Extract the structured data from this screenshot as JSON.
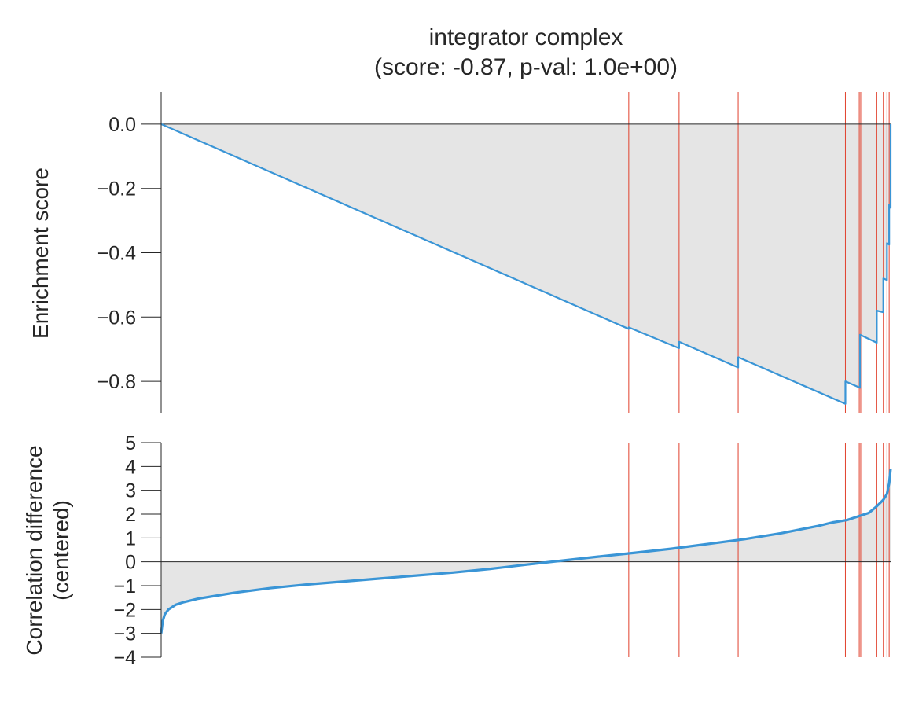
{
  "figure": {
    "title_line1": "integrator complex",
    "title_line2": "(score: -0.87, p-val: 1.0e+00)"
  },
  "colors": {
    "curve": "#3a95d6",
    "hit_line": "#e1412d",
    "fill": "#e5e5e5",
    "axis": "#262626"
  },
  "chart_data": [
    {
      "type": "line",
      "panel": "enrichment",
      "ylabel": "Enrichment score",
      "xlabel": "",
      "ylim": [
        -0.9,
        0.1
      ],
      "xlim": [
        0,
        1000
      ],
      "y_ticks": [
        {
          "value": 0.0,
          "label": "0.0"
        },
        {
          "value": -0.2,
          "label": "−0.2"
        },
        {
          "value": -0.4,
          "label": "−0.4"
        },
        {
          "value": -0.6,
          "label": "−0.6"
        },
        {
          "value": -0.8,
          "label": "−0.8"
        }
      ],
      "series": [
        {
          "x": [
            0,
            641,
            641,
            710,
            710,
            791,
            791,
            938,
            938,
            958,
            958,
            981,
            981,
            990,
            990,
            995,
            995,
            998,
            998,
            1000,
            1000
          ],
          "y": [
            0.0,
            -0.637,
            -0.632,
            -0.697,
            -0.677,
            -0.757,
            -0.725,
            -0.87,
            -0.8,
            -0.82,
            -0.655,
            -0.68,
            -0.58,
            -0.585,
            -0.48,
            -0.485,
            -0.37,
            -0.375,
            -0.25,
            -0.26,
            0.0
          ]
        }
      ],
      "hit_positions": [
        641,
        710,
        791,
        938,
        957,
        959,
        981,
        990,
        995,
        998
      ]
    },
    {
      "type": "area",
      "panel": "ranked-metric",
      "ylabel_line1": "Correlation difference",
      "ylabel_line2": "(centered)",
      "xlabel": "",
      "ylim": [
        -4,
        5
      ],
      "xlim": [
        0,
        1000
      ],
      "y_ticks": [
        {
          "value": 5,
          "label": "5"
        },
        {
          "value": 4,
          "label": "4"
        },
        {
          "value": 3,
          "label": "3"
        },
        {
          "value": 2,
          "label": "2"
        },
        {
          "value": 1,
          "label": "1"
        },
        {
          "value": 0,
          "label": "0"
        },
        {
          "value": -1,
          "label": "−1"
        },
        {
          "value": -2,
          "label": "−2"
        },
        {
          "value": -3,
          "label": "−3"
        },
        {
          "value": -4,
          "label": "−4"
        }
      ],
      "series": [
        {
          "x": [
            0,
            2,
            5,
            10,
            20,
            30,
            50,
            80,
            100,
            150,
            200,
            300,
            400,
            450,
            500,
            550,
            600,
            650,
            700,
            750,
            800,
            850,
            900,
            920,
            940,
            960,
            970,
            980,
            985,
            990,
            995,
            998,
            1000
          ],
          "y": [
            -3.0,
            -2.5,
            -2.2,
            -2.0,
            -1.8,
            -1.7,
            -1.55,
            -1.4,
            -1.3,
            -1.1,
            -0.95,
            -0.7,
            -0.45,
            -0.3,
            -0.12,
            0.05,
            0.22,
            0.38,
            0.55,
            0.75,
            0.95,
            1.2,
            1.5,
            1.65,
            1.75,
            1.95,
            2.05,
            2.3,
            2.45,
            2.6,
            2.85,
            3.3,
            3.9
          ]
        }
      ],
      "hit_positions": [
        641,
        710,
        791,
        938,
        957,
        959,
        981,
        990,
        995,
        998
      ]
    }
  ]
}
